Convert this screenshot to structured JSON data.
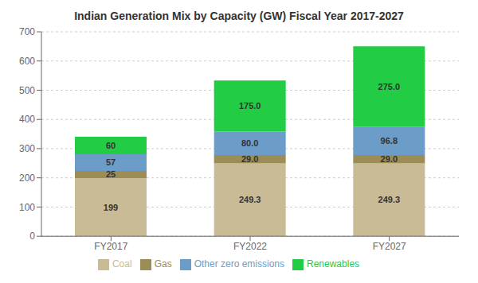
{
  "chart_data": {
    "type": "bar",
    "stacked": true,
    "title": "Indian Generation Mix by Capacity (GW) Fiscal Year 2017-2027",
    "categories": [
      "FY2017",
      "FY2022",
      "FY2027"
    ],
    "series": [
      {
        "name": "Coal",
        "color": "#C8BB96",
        "values": [
          199,
          249.3,
          249.3
        ]
      },
      {
        "name": "Gas",
        "color": "#9B8D55",
        "values": [
          25,
          29.0,
          29.0
        ],
        "value_labels": [
          "25",
          "29.0",
          "29.0"
        ]
      },
      {
        "name": "Other zero emissions",
        "color": "#6B9DC8",
        "values": [
          57,
          80.0,
          96.8
        ],
        "value_labels": [
          "57",
          "80.0",
          "96.8"
        ]
      },
      {
        "name": "Renewables",
        "color": "#22CC44",
        "values": [
          60,
          175.0,
          275.0
        ],
        "value_labels": [
          "60",
          "175.0",
          "275.0"
        ]
      }
    ],
    "ylim": [
      0,
      700
    ],
    "yticks": [
      0,
      100,
      200,
      300,
      400,
      500,
      600,
      700
    ],
    "grid": true,
    "legend": "bottom",
    "data_labels": true
  }
}
